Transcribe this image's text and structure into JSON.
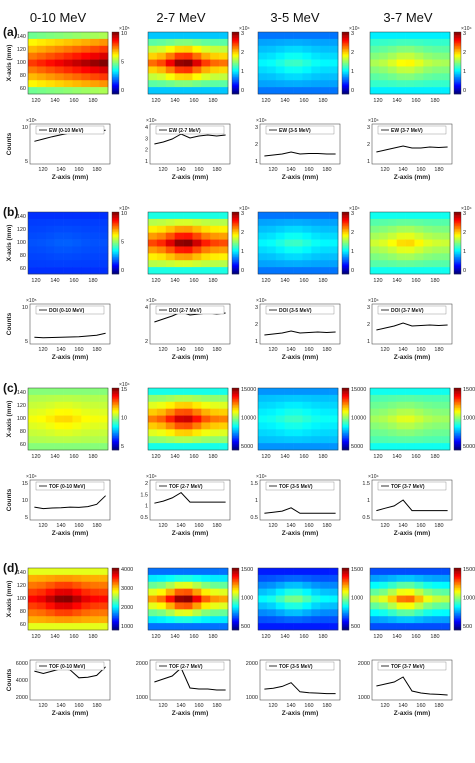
{
  "columns": [
    "0-10 MeV",
    "2-7 MeV",
    "3-5 MeV",
    "3-7 MeV"
  ],
  "rows": [
    {
      "tag": "(a)",
      "x_label": "Z-axis (mm)",
      "y_label_map": "X-axis (mm)",
      "y_label_line": "Counts",
      "maps": [
        {
          "exp": "×10⁵",
          "cbar_ticks": [
            "10",
            "5",
            "0"
          ],
          "cbar_max": 10,
          "peak": 10,
          "floor": 4,
          "edge_drop": 0.15
        },
        {
          "exp": "×10⁴",
          "cbar_ticks": [
            "3",
            "2",
            "1",
            "0"
          ],
          "cbar_max": 3,
          "peak": 3.0,
          "floor": 1.2,
          "edge_drop": 0.2
        },
        {
          "exp": "×10⁴",
          "cbar_ticks": [
            "3",
            "2",
            "1",
            "0"
          ],
          "cbar_max": 3,
          "peak": 1.3,
          "floor": 0.8,
          "edge_drop": 0.1
        },
        {
          "exp": "×10⁴",
          "cbar_ticks": [
            "3",
            "2",
            "1",
            "0"
          ],
          "cbar_max": 3,
          "peak": 1.9,
          "floor": 1.2,
          "edge_drop": 0.1
        }
      ],
      "lines": [
        {
          "label": "EW (0-10 MeV)",
          "exp": "×10⁵",
          "yticks": [
            "10",
            "5"
          ]
        },
        {
          "label": "EW (2-7 MeV)",
          "exp": "×10⁴",
          "yticks": [
            "4",
            "3",
            "2",
            "1"
          ]
        },
        {
          "label": "EW (3-5 MeV)",
          "exp": "×10⁴",
          "yticks": [
            "3",
            "2",
            "1"
          ]
        },
        {
          "label": "EW (3-7 MeV)",
          "exp": "×10⁴",
          "yticks": [
            "3",
            "2",
            "1"
          ]
        }
      ]
    },
    {
      "tag": "(b)",
      "x_label": "Z-axis (mm)",
      "y_label_map": "X-axis (mm)",
      "y_label_line": "Counts",
      "maps": [
        {
          "exp": "×10⁵",
          "cbar_ticks": [
            "10",
            "5",
            "0"
          ],
          "cbar_max": 10,
          "peak": 2.2,
          "floor": 1.8,
          "edge_drop": 0.05
        },
        {
          "exp": "×10⁴",
          "cbar_ticks": [
            "3",
            "2",
            "1",
            "0"
          ],
          "cbar_max": 3,
          "peak": 3.0,
          "floor": 1.5,
          "edge_drop": 0.2
        },
        {
          "exp": "×10⁴",
          "cbar_ticks": [
            "3",
            "2",
            "1",
            "0"
          ],
          "cbar_max": 3,
          "peak": 1.3,
          "floor": 0.8,
          "edge_drop": 0.1
        },
        {
          "exp": "×10⁴",
          "cbar_ticks": [
            "3",
            "2",
            "1",
            "0"
          ],
          "cbar_max": 3,
          "peak": 2.0,
          "floor": 1.3,
          "edge_drop": 0.1
        }
      ],
      "lines": [
        {
          "label": "DOI (0-10 MeV)",
          "exp": "×10⁵",
          "yticks": [
            "10",
            "5"
          ]
        },
        {
          "label": "DOI (2-7 MeV)",
          "exp": "×10⁴",
          "yticks": [
            "4",
            "2"
          ]
        },
        {
          "label": "DOI (3-5 MeV)",
          "exp": "×10⁴",
          "yticks": [
            "3",
            "2",
            "1"
          ]
        },
        {
          "label": "DOI (3-7 MeV)",
          "exp": "×10⁴",
          "yticks": [
            "3",
            "2",
            "1"
          ]
        }
      ]
    },
    {
      "tag": "(c)",
      "x_label": "Z-axis (mm)",
      "y_label_map": "X-axis (mm)",
      "y_label_line": "Counts",
      "maps": [
        {
          "exp": "×10⁴",
          "cbar_ticks": [
            "15",
            "10",
            "5"
          ],
          "cbar_max": 15,
          "peak": 10,
          "floor": 8,
          "edge_drop": 0.05
        },
        {
          "exp": "",
          "cbar_ticks": [
            "15000",
            "10000",
            "5000"
          ],
          "cbar_max": 15000,
          "peak": 14000,
          "floor": 7000,
          "edge_drop": 0.15
        },
        {
          "exp": "",
          "cbar_ticks": [
            "15000",
            "10000",
            "5000"
          ],
          "cbar_max": 15000,
          "peak": 6500,
          "floor": 4500,
          "edge_drop": 0.1
        },
        {
          "exp": "",
          "cbar_ticks": [
            "15000",
            "10000",
            "5000"
          ],
          "cbar_max": 15000,
          "peak": 9000,
          "floor": 6500,
          "edge_drop": 0.1
        }
      ],
      "lines": [
        {
          "label": "TOF (0-10 MeV)",
          "exp": "×10⁴",
          "yticks": [
            "15",
            "10",
            "5"
          ]
        },
        {
          "label": "TOF (2-7 MeV)",
          "exp": "×10⁴",
          "yticks": [
            "2",
            "1.5",
            "1",
            "0.5"
          ]
        },
        {
          "label": "TOF (3-5 MeV)",
          "exp": "×10⁴",
          "yticks": [
            "1.5",
            "1",
            "0.5"
          ]
        },
        {
          "label": "TOF (3-7 MeV)",
          "exp": "×10⁴",
          "yticks": [
            "1.5",
            "1",
            "0.5"
          ]
        }
      ]
    },
    {
      "tag": "(d)",
      "x_label": "Z-axis (mm)",
      "y_label_map": "X-axis (mm)",
      "y_label_line": "Counts",
      "maps": [
        {
          "exp": "",
          "cbar_ticks": [
            "4000",
            "3000",
            "2000",
            "1000"
          ],
          "cbar_max": 4500,
          "peak": 4500,
          "floor": 3000,
          "edge_drop": 0.1
        },
        {
          "exp": "",
          "cbar_ticks": [
            "1500",
            "1000",
            "500"
          ],
          "cbar_max": 1800,
          "peak": 1800,
          "floor": 500,
          "edge_drop": 0.15
        },
        {
          "exp": "",
          "cbar_ticks": [
            "1500",
            "1000",
            "500"
          ],
          "cbar_max": 1800,
          "peak": 900,
          "floor": 300,
          "edge_drop": 0.1
        },
        {
          "exp": "",
          "cbar_ticks": [
            "1500",
            "1000",
            "500"
          ],
          "cbar_max": 1800,
          "peak": 1400,
          "floor": 400,
          "edge_drop": 0.1
        }
      ],
      "lines": [
        {
          "label": "TOF (0-10 MeV)",
          "exp": "",
          "yticks": [
            "6000",
            "4000",
            "2000"
          ]
        },
        {
          "label": "TOF (2-7 MeV)",
          "exp": "",
          "yticks": [
            "2000",
            "1000"
          ]
        },
        {
          "label": "TOF (3-5 MeV)",
          "exp": "",
          "yticks": [
            "2000",
            "1000"
          ]
        },
        {
          "label": "TOF (3-7 MeV)",
          "exp": "",
          "yticks": [
            "2000",
            "1000"
          ]
        }
      ]
    }
  ],
  "map_xticks": [
    "120",
    "140",
    "160",
    "180"
  ],
  "map_yticks": [
    "140",
    "120",
    "100",
    "80",
    "60"
  ],
  "line_xticks": [
    "120",
    "140",
    "160",
    "180"
  ],
  "chart_data": [
    {
      "type": "line",
      "x": [
        110,
        120,
        130,
        140,
        150,
        160,
        170,
        180,
        190
      ],
      "series": [
        {
          "name": "EW (0-10 MeV)",
          "values": [
            6.8,
            7.5,
            8.2,
            8.8,
            9.3,
            9.6,
            9.9,
            10.0,
            10.1
          ]
        },
        {
          "name": "EW (2-7 MeV)",
          "values": [
            2.0,
            2.2,
            2.5,
            3.0,
            2.6,
            2.8,
            2.9,
            2.8,
            2.9
          ]
        },
        {
          "name": "EW (3-5 MeV)",
          "values": [
            0.8,
            0.9,
            1.0,
            1.2,
            1.0,
            1.05,
            1.05,
            1.0,
            1.0
          ]
        },
        {
          "name": "EW (3-7 MeV)",
          "values": [
            1.2,
            1.4,
            1.6,
            1.8,
            1.6,
            1.6,
            1.7,
            1.65,
            1.7
          ]
        },
        {
          "name": "DOI (0-10 MeV)",
          "values": [
            2.0,
            1.9,
            1.95,
            2.0,
            2.1,
            2.2,
            2.4,
            2.6,
            3.2
          ]
        },
        {
          "name": "DOI (2-7 MeV)",
          "values": [
            2.2,
            2.5,
            2.8,
            3.2,
            2.9,
            3.0,
            3.1,
            3.0,
            3.1
          ]
        },
        {
          "name": "DOI (3-5 MeV)",
          "values": [
            0.9,
            1.0,
            1.1,
            1.3,
            1.1,
            1.15,
            1.2,
            1.15,
            1.2
          ]
        },
        {
          "name": "DOI (3-7 MeV)",
          "values": [
            1.4,
            1.6,
            1.8,
            2.1,
            1.8,
            1.85,
            1.9,
            1.85,
            1.9
          ]
        },
        {
          "name": "TOF (0-10 MeV)",
          "values": [
            8.5,
            8.0,
            8.2,
            8.3,
            8.5,
            8.4,
            8.7,
            9.5,
            12.5
          ]
        },
        {
          "name": "TOF (2-7 MeV)",
          "values": [
            1.1,
            1.2,
            1.35,
            1.6,
            1.15,
            1.15,
            1.15,
            1.15,
            1.15
          ]
        },
        {
          "name": "TOF (3-5 MeV)",
          "values": [
            0.5,
            0.55,
            0.6,
            0.75,
            0.5,
            0.5,
            0.5,
            0.5,
            0.5
          ]
        },
        {
          "name": "TOF (3-7 MeV)",
          "values": [
            0.7,
            0.8,
            0.9,
            1.15,
            0.7,
            0.7,
            0.7,
            0.7,
            0.7
          ]
        },
        {
          "name": "TOF (0-10 MeV) (d)",
          "values": [
            4700,
            4300,
            4700,
            5100,
            4900,
            3600,
            3700,
            4000,
            5400
          ]
        },
        {
          "name": "TOF (2-7 MeV) (d)",
          "values": [
            1200,
            1350,
            1500,
            1900,
            900,
            850,
            850,
            800,
            800
          ]
        },
        {
          "name": "TOF (3-5 MeV) (d)",
          "values": [
            600,
            650,
            750,
            950,
            450,
            400,
            380,
            350,
            350
          ]
        },
        {
          "name": "TOF (3-7 MeV) (d)",
          "values": [
            900,
            1000,
            1100,
            1350,
            650,
            550,
            500,
            480,
            450
          ]
        }
      ]
    }
  ],
  "line_ranges": [
    [
      [
        0,
        12
      ],
      [
        0,
        4
      ],
      [
        0,
        4
      ],
      [
        0,
        4
      ]
    ],
    [
      [
        0,
        12
      ],
      [
        0,
        4
      ],
      [
        0,
        4
      ],
      [
        0,
        4
      ]
    ],
    [
      [
        4,
        18
      ],
      [
        0.3,
        2.2
      ],
      [
        0.2,
        2
      ],
      [
        0.3,
        2
      ]
    ],
    [
      [
        0,
        6500
      ],
      [
        300,
        2300
      ],
      [
        0,
        2200
      ],
      [
        200,
        2200
      ]
    ]
  ],
  "series_index_rows": [
    [
      0,
      1,
      2,
      3
    ],
    [
      4,
      5,
      6,
      7
    ],
    [
      8,
      9,
      10,
      11
    ],
    [
      12,
      13,
      14,
      15
    ]
  ]
}
